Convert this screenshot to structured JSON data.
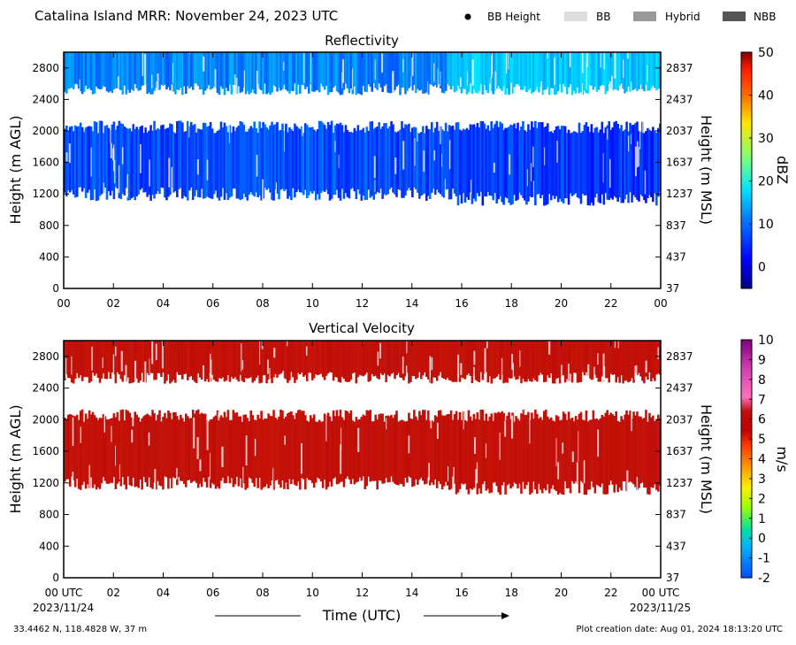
{
  "header": {
    "title": "Catalina Island MRR:  November 24, 2023 UTC",
    "legend": [
      {
        "label": "BB Height",
        "color": "#000000",
        "shape": "dot"
      },
      {
        "label": "BB",
        "color": "#dddddd",
        "shape": "bar"
      },
      {
        "label": "Hybrid",
        "color": "#999999",
        "shape": "bar"
      },
      {
        "label": "NBB",
        "color": "#555555",
        "shape": "bar"
      }
    ]
  },
  "footer": {
    "location": "33.4462 N, 118.4828 W, 37 m",
    "created": "Plot creation date: Aug 01, 2024 18:13:20 UTC",
    "start_date": "2023/11/24",
    "end_date": "2023/11/25",
    "xlabel": "Time (UTC)"
  },
  "chart_data": [
    {
      "type": "heatmap",
      "title": "Reflectivity",
      "xlabel": "Time (UTC)",
      "ylabel": "Height (m AGL)",
      "ylabel_right": "Height (m MSL)",
      "xlim": [
        0,
        24
      ],
      "ylim": [
        0,
        3000
      ],
      "x_ticks": [
        "00",
        "02",
        "04",
        "06",
        "08",
        "10",
        "12",
        "14",
        "16",
        "18",
        "20",
        "22",
        "00"
      ],
      "y_ticks": [
        0,
        400,
        800,
        1200,
        1600,
        2000,
        2400,
        2800
      ],
      "y_ticks_right": [
        37,
        437,
        837,
        1237,
        1637,
        2037,
        2437,
        2837
      ],
      "colorbar": {
        "label": "dBZ",
        "range": [
          -5,
          50
        ],
        "ticks": [
          0,
          10,
          20,
          30,
          40,
          50
        ]
      },
      "layers": [
        {
          "name": "upper",
          "bottom_m": 2500,
          "top_m": 3000,
          "value": 5
        },
        {
          "name": "lower",
          "bottom_m": 1200,
          "top_m": 2050,
          "value": 2
        }
      ]
    },
    {
      "type": "heatmap",
      "title": "Vertical Velocity",
      "xlabel": "Time (UTC)",
      "ylabel": "Height (m AGL)",
      "ylabel_right": "Height (m MSL)",
      "xlim": [
        0,
        24
      ],
      "ylim": [
        0,
        3000
      ],
      "x_ticks": [
        "00 UTC",
        "02",
        "04",
        "06",
        "08",
        "10",
        "12",
        "14",
        "16",
        "18",
        "20",
        "22",
        "00 UTC"
      ],
      "y_ticks": [
        0,
        400,
        800,
        1200,
        1600,
        2000,
        2400,
        2800
      ],
      "y_ticks_right": [
        37,
        437,
        837,
        1237,
        1637,
        2037,
        2437,
        2837
      ],
      "colorbar": {
        "label": "m/s",
        "range": [
          -2,
          10
        ],
        "ticks": [
          -2,
          -1,
          0,
          1,
          2,
          3,
          4,
          5,
          6,
          7,
          8,
          9,
          10
        ]
      },
      "layers": [
        {
          "name": "upper",
          "bottom_m": 2500,
          "top_m": 3000,
          "value": 6
        },
        {
          "name": "lower",
          "bottom_m": 1200,
          "top_m": 2050,
          "value": 6
        }
      ]
    }
  ]
}
